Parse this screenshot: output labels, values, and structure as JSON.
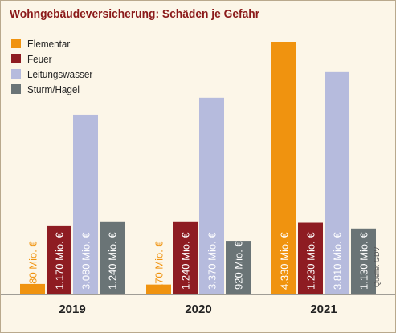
{
  "chart_data": {
    "type": "bar",
    "title": "Wohngebäudeversicherung: Schäden je Gefahr",
    "categories": [
      "2019",
      "2020",
      "2021"
    ],
    "series": [
      {
        "name": "Elementar",
        "color": "#f0930f",
        "values": [
          180,
          170,
          4330
        ],
        "labels": [
          "180 Mio. €",
          "170 Mio. €",
          "4.330 Mio. €"
        ]
      },
      {
        "name": "Feuer",
        "color": "#8e1c22",
        "values": [
          1170,
          1240,
          1230
        ],
        "labels": [
          "1.170 Mio. €",
          "1.240 Mio. €",
          "1.230 Mio. €"
        ]
      },
      {
        "name": "Leitungswasser",
        "color": "#b6bbdd",
        "values": [
          3080,
          3370,
          3810
        ],
        "labels": [
          "3.080 Mio. €",
          "3.370 Mio. €",
          "3.810 Mio. €"
        ]
      },
      {
        "name": "Sturm/Hagel",
        "color": "#6a7476",
        "values": [
          1240,
          920,
          1130
        ],
        "labels": [
          "1.240 Mio. €",
          "920 Mio. €",
          "1.130 Mio. €"
        ]
      }
    ],
    "ylim": [
      0,
      4330
    ],
    "grid": false,
    "legend_position": "top-left",
    "source": "Quelle: GDV"
  }
}
